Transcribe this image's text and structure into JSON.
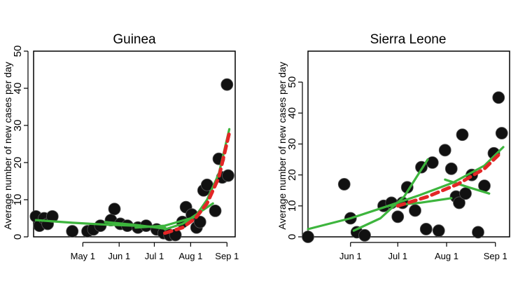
{
  "colors": {
    "points": "#111111",
    "fit_lines": "#3db53d",
    "trend_dashed": "#e32626",
    "axis": "#000000"
  },
  "chart_data": [
    {
      "type": "scatter",
      "title": "Guinea",
      "ylabel": "Average number of new cases per day",
      "xlabel": "",
      "x_axis": "date",
      "xlim": [
        "2014-03-20",
        "2014-09-08"
      ],
      "ylim": [
        0,
        50
      ],
      "yticks": [
        0,
        10,
        20,
        30,
        40,
        50
      ],
      "xticks": [
        {
          "label": "May 1",
          "date": "2014-05-01"
        },
        {
          "label": "Jun 1",
          "date": "2014-06-01"
        },
        {
          "label": "Jul 1",
          "date": "2014-07-01"
        },
        {
          "label": "Aug 1",
          "date": "2014-08-01"
        },
        {
          "label": "Sep 1",
          "date": "2014-09-01"
        }
      ],
      "grid": false,
      "points": [
        {
          "x": "2014-03-22",
          "y": 5.5
        },
        {
          "x": "2014-03-25",
          "y": 3
        },
        {
          "x": "2014-03-29",
          "y": 5
        },
        {
          "x": "2014-04-01",
          "y": 3.5
        },
        {
          "x": "2014-04-05",
          "y": 5.5
        },
        {
          "x": "2014-04-22",
          "y": 1.5
        },
        {
          "x": "2014-05-05",
          "y": 1.5
        },
        {
          "x": "2014-05-10",
          "y": 2
        },
        {
          "x": "2014-05-16",
          "y": 3
        },
        {
          "x": "2014-05-25",
          "y": 4.5
        },
        {
          "x": "2014-05-28",
          "y": 7.5
        },
        {
          "x": "2014-06-02",
          "y": 3.5
        },
        {
          "x": "2014-06-08",
          "y": 3
        },
        {
          "x": "2014-06-17",
          "y": 2.5
        },
        {
          "x": "2014-06-24",
          "y": 3
        },
        {
          "x": "2014-07-03",
          "y": 2
        },
        {
          "x": "2014-07-09",
          "y": 1
        },
        {
          "x": "2014-07-14",
          "y": 0.5
        },
        {
          "x": "2014-07-19",
          "y": 0.5
        },
        {
          "x": "2014-07-25",
          "y": 4
        },
        {
          "x": "2014-07-28",
          "y": 8
        },
        {
          "x": "2014-08-02",
          "y": 6
        },
        {
          "x": "2014-08-06",
          "y": 2.5
        },
        {
          "x": "2014-08-09",
          "y": 4
        },
        {
          "x": "2014-08-12",
          "y": 12.5
        },
        {
          "x": "2014-08-15",
          "y": 14
        },
        {
          "x": "2014-08-22",
          "y": 7
        },
        {
          "x": "2014-08-25",
          "y": 21
        },
        {
          "x": "2014-08-28",
          "y": 16
        },
        {
          "x": "2014-09-01",
          "y": 41
        },
        {
          "x": "2014-09-02",
          "y": 16.5
        }
      ],
      "fit_lines": [
        {
          "x": [
            "2014-03-22",
            "2014-04-22",
            "2014-05-20",
            "2014-06-15",
            "2014-07-10"
          ],
          "y": [
            4.5,
            3.8,
            3.3,
            3.0,
            2.5
          ]
        },
        {
          "x": [
            "2014-05-20",
            "2014-06-15",
            "2014-07-10"
          ],
          "y": [
            4.0,
            3.2,
            2.2
          ]
        },
        {
          "x": [
            "2014-06-15",
            "2014-07-10",
            "2014-08-01",
            "2014-08-20"
          ],
          "y": [
            2.5,
            3.0,
            5.0,
            9.0
          ]
        },
        {
          "x": [
            "2014-07-10",
            "2014-07-25",
            "2014-08-05",
            "2014-08-15",
            "2014-08-25",
            "2014-09-03"
          ],
          "y": [
            2.0,
            3.5,
            5.5,
            10.0,
            17.0,
            29.0
          ]
        }
      ],
      "trend_dashed": {
        "x": [
          "2014-07-10",
          "2014-07-25",
          "2014-08-05",
          "2014-08-15",
          "2014-08-25",
          "2014-09-03"
        ],
        "y": [
          1.0,
          2.5,
          5.0,
          9.0,
          16.0,
          28.0
        ]
      }
    },
    {
      "type": "scatter",
      "title": "Sierra Leone",
      "ylabel": "Average number of new cases per day",
      "xlabel": "",
      "x_axis": "date",
      "xlim": [
        "2014-05-05",
        "2014-09-10"
      ],
      "ylim": [
        0,
        60
      ],
      "yticks": [
        0,
        10,
        20,
        30,
        40,
        50
      ],
      "xticks": [
        {
          "label": "Jun 1",
          "date": "2014-06-01"
        },
        {
          "label": "Jul 1",
          "date": "2014-07-01"
        },
        {
          "label": "Aug 1",
          "date": "2014-08-01"
        },
        {
          "label": "Sep 1",
          "date": "2014-09-01"
        }
      ],
      "grid": false,
      "points": [
        {
          "x": "2014-05-05",
          "y": 0
        },
        {
          "x": "2014-05-28",
          "y": 17
        },
        {
          "x": "2014-06-01",
          "y": 6
        },
        {
          "x": "2014-06-05",
          "y": 1.5
        },
        {
          "x": "2014-06-10",
          "y": 0.5
        },
        {
          "x": "2014-06-22",
          "y": 10
        },
        {
          "x": "2014-06-27",
          "y": 11
        },
        {
          "x": "2014-07-01",
          "y": 6.5
        },
        {
          "x": "2014-07-04",
          "y": 11
        },
        {
          "x": "2014-07-07",
          "y": 16
        },
        {
          "x": "2014-07-12",
          "y": 8.5
        },
        {
          "x": "2014-07-16",
          "y": 22.5
        },
        {
          "x": "2014-07-19",
          "y": 2.5
        },
        {
          "x": "2014-07-23",
          "y": 24
        },
        {
          "x": "2014-07-27",
          "y": 2
        },
        {
          "x": "2014-07-31",
          "y": 28
        },
        {
          "x": "2014-08-04",
          "y": 22
        },
        {
          "x": "2014-08-07",
          "y": 13
        },
        {
          "x": "2014-08-09",
          "y": 11
        },
        {
          "x": "2014-08-11",
          "y": 33
        },
        {
          "x": "2014-08-13",
          "y": 14
        },
        {
          "x": "2014-08-17",
          "y": 20
        },
        {
          "x": "2014-08-21",
          "y": 1.5
        },
        {
          "x": "2014-08-25",
          "y": 16.5
        },
        {
          "x": "2014-08-31",
          "y": 27
        },
        {
          "x": "2014-09-03",
          "y": 45
        },
        {
          "x": "2014-09-05",
          "y": 33.5
        }
      ],
      "fit_lines": [
        {
          "x": [
            "2014-05-05",
            "2014-06-01",
            "2014-06-25",
            "2014-07-15",
            "2014-08-05",
            "2014-08-25",
            "2014-09-06"
          ],
          "y": [
            2.5,
            6.0,
            10.0,
            13.5,
            17.5,
            23.0,
            29.0
          ]
        },
        {
          "x": [
            "2014-06-03",
            "2014-06-20",
            "2014-07-05",
            "2014-07-20"
          ],
          "y": [
            2.0,
            6.0,
            13.0,
            25.0
          ]
        },
        {
          "x": [
            "2014-06-25",
            "2014-07-15",
            "2014-08-04"
          ],
          "y": [
            10.0,
            11.0,
            12.5
          ]
        },
        {
          "x": [
            "2014-07-31",
            "2014-08-15",
            "2014-08-28"
          ],
          "y": [
            18.5,
            16.0,
            14.0
          ]
        }
      ],
      "trend_dashed": {
        "x": [
          "2014-07-01",
          "2014-07-20",
          "2014-08-08",
          "2014-08-25",
          "2014-09-03"
        ],
        "y": [
          10.0,
          13.0,
          17.0,
          22.0,
          26.5
        ]
      }
    }
  ]
}
